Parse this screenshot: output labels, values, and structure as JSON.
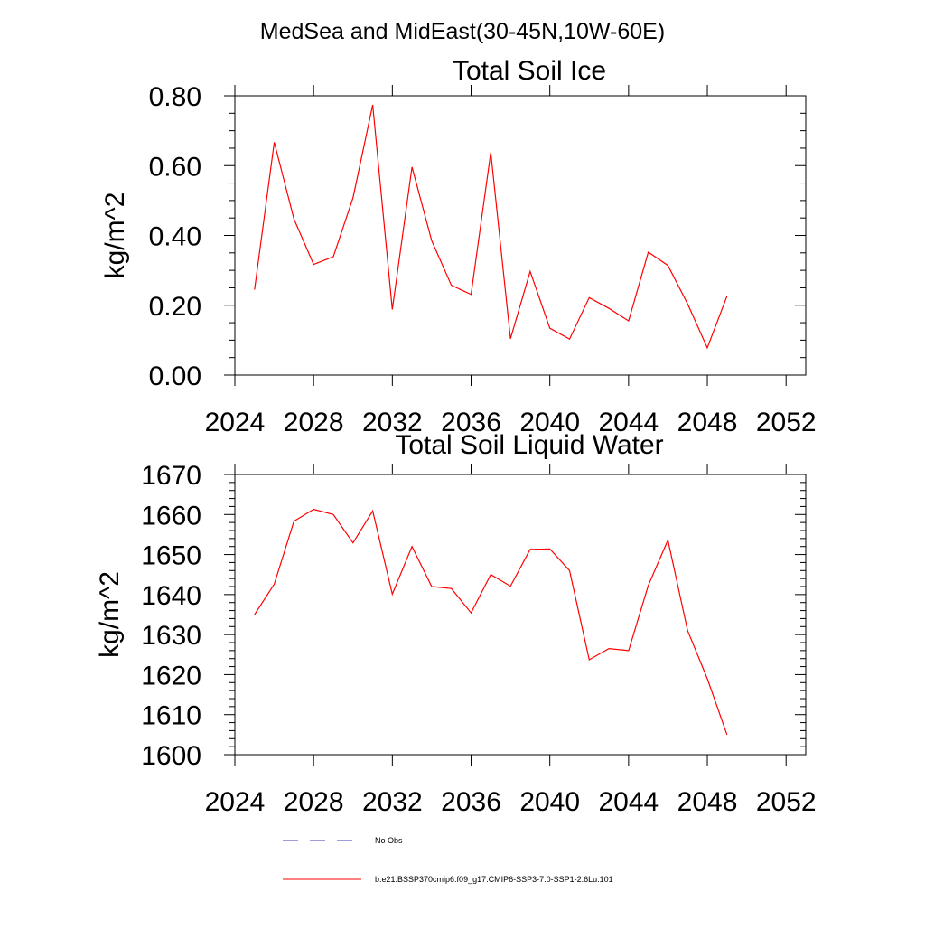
{
  "suptitle": "MedSea and MidEast(30-45N,10W-60E)",
  "colors": {
    "series": "#ff0000",
    "no_obs": "#3b3bb0",
    "axis": "#000000"
  },
  "legend": {
    "placement": "bottom-left",
    "entries": [
      {
        "label": "No Obs",
        "style": "dashed",
        "color": "#3b3bb0"
      },
      {
        "label": "b.e21.BSSP370cmip6.f09_g17.CMIP6-SSP3-7.0-SSP1-2.6Lu.101",
        "style": "solid",
        "color": "#ff0000"
      }
    ]
  },
  "chart_data": [
    {
      "type": "line",
      "title": "Total Soil Ice",
      "xlabel": "",
      "ylabel": "kg/m^2",
      "xlim": [
        2024,
        2053
      ],
      "ylim": [
        0,
        0.8
      ],
      "xticks": [
        2024,
        2028,
        2032,
        2036,
        2040,
        2044,
        2048,
        2052
      ],
      "xtick_labels": [
        "2024",
        "2028",
        "2032",
        "2036",
        "2040",
        "2044",
        "2048",
        "2052"
      ],
      "yticks": [
        0,
        0.2,
        0.4,
        0.6,
        0.8
      ],
      "ytick_labels": [
        "0.00",
        "0.20",
        "0.40",
        "0.60",
        "0.80"
      ],
      "grid": false,
      "x": [
        2025,
        2026,
        2027,
        2028,
        2029,
        2030,
        2031,
        2032,
        2033,
        2034,
        2035,
        2036,
        2037,
        2038,
        2039,
        2040,
        2041,
        2042,
        2043,
        2044,
        2045,
        2046,
        2047,
        2048,
        2049
      ],
      "series": [
        {
          "values": [
            0.245,
            0.667,
            0.447,
            0.317,
            0.339,
            0.508,
            0.774,
            0.188,
            0.596,
            0.385,
            0.257,
            0.231,
            0.638,
            0.104,
            0.297,
            0.134,
            0.103,
            0.222,
            0.191,
            0.155,
            0.352,
            0.314,
            0.204,
            0.078,
            0.226
          ]
        }
      ]
    },
    {
      "type": "line",
      "title": "Total Soil Liquid Water",
      "xlabel": "",
      "ylabel": "kg/m^2",
      "xlim": [
        2024,
        2053
      ],
      "ylim": [
        1600,
        1670
      ],
      "xticks": [
        2024,
        2028,
        2032,
        2036,
        2040,
        2044,
        2048,
        2052
      ],
      "xtick_labels": [
        "2024",
        "2028",
        "2032",
        "2036",
        "2040",
        "2044",
        "2048",
        "2052"
      ],
      "yticks": [
        1600,
        1610,
        1620,
        1630,
        1640,
        1650,
        1660,
        1670
      ],
      "ytick_labels": [
        "1600",
        "1610",
        "1620",
        "1630",
        "1640",
        "1650",
        "1660",
        "1670"
      ],
      "grid": false,
      "x": [
        2025,
        2026,
        2027,
        2028,
        2029,
        2030,
        2031,
        2032,
        2033,
        2034,
        2035,
        2036,
        2037,
        2038,
        2039,
        2040,
        2041,
        2042,
        2043,
        2044,
        2045,
        2046,
        2047,
        2048,
        2049
      ],
      "series": [
        {
          "values": [
            1635,
            1642.6,
            1658.3,
            1661.3,
            1660,
            1652.9,
            1660.9,
            1640.1,
            1652,
            1642,
            1641.5,
            1635.4,
            1645,
            1642.1,
            1651.3,
            1651.4,
            1646,
            1623.7,
            1626.5,
            1626,
            1642.3,
            1653.6,
            1631,
            1619,
            1605
          ]
        }
      ]
    }
  ]
}
